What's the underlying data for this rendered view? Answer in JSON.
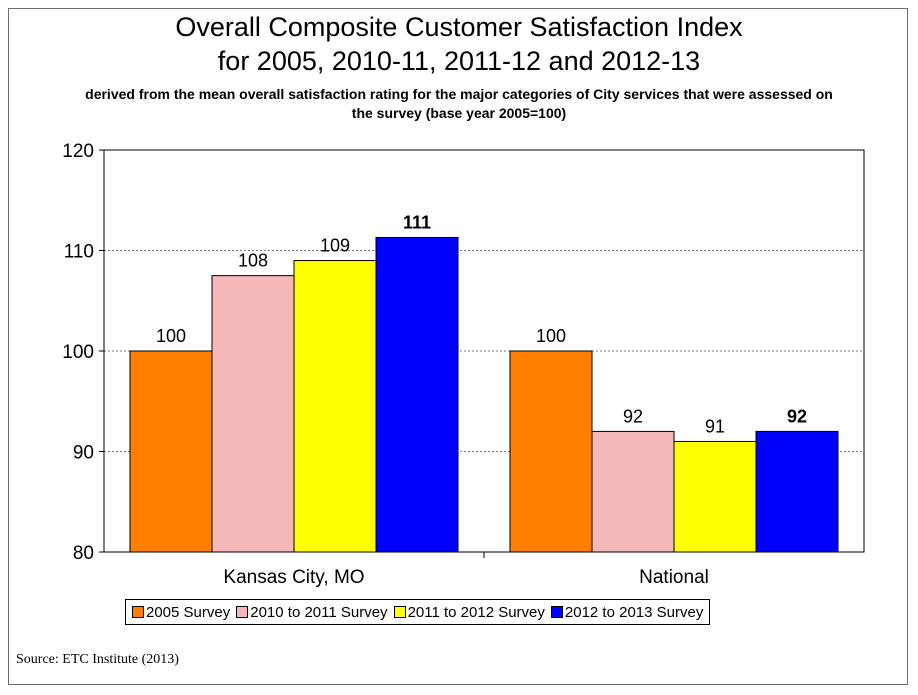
{
  "title_line1": "Overall Composite Customer Satisfaction Index",
  "title_line2": "for 2005, 2010-11, 2011-12 and 2012-13",
  "subtitle": "derived from the mean overall satisfaction rating for the major categories of City services that were assessed on the survey (base year 2005=100)",
  "source": "Source:  ETC Institute (2013)",
  "chart_data": {
    "type": "bar",
    "categories": [
      "Kansas City, MO",
      "National"
    ],
    "series": [
      {
        "name": "2005 Survey",
        "color": "#FF8000",
        "values": [
          100,
          100
        ],
        "labels": [
          "100",
          "100"
        ],
        "label_bold": false
      },
      {
        "name": "2010 to 2011 Survey",
        "color": "#F4B8B8",
        "values": [
          107.5,
          92
        ],
        "labels": [
          "108",
          "92"
        ],
        "label_bold": false
      },
      {
        "name": "2011 to 2012 Survey",
        "color": "#FFFF00",
        "values": [
          109,
          91
        ],
        "labels": [
          "109",
          "91"
        ],
        "label_bold": false
      },
      {
        "name": "2012 to 2013 Survey",
        "color": "#0000FF",
        "values": [
          111.3,
          92
        ],
        "labels": [
          "111",
          "92"
        ],
        "label_bold": true
      }
    ],
    "ylim": [
      80,
      120
    ],
    "yticks": [
      80,
      90,
      100,
      110,
      120
    ],
    "grid": "dotted horizontal",
    "legend_position": "bottom"
  }
}
